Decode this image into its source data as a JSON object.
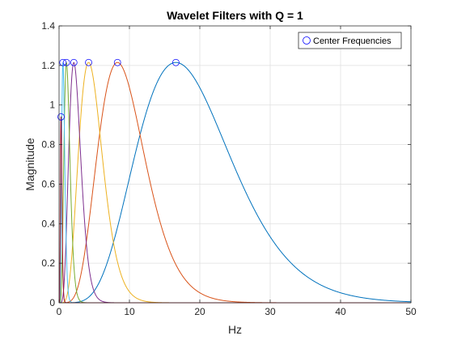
{
  "chart_data": {
    "type": "line",
    "title": "Wavelet Filters with Q = 1",
    "xlabel": "Hz",
    "ylabel": "Magnitude",
    "xlim": [
      0,
      50
    ],
    "ylim": [
      0,
      1.4
    ],
    "xticks": [
      0,
      10,
      20,
      30,
      40,
      50
    ],
    "yticks": [
      0,
      0.2,
      0.4,
      0.6,
      0.8,
      1,
      1.2,
      1.4
    ],
    "xtick_labels": [
      "0",
      "10",
      "20",
      "30",
      "40",
      "50"
    ],
    "ytick_labels": [
      "0",
      "0.2",
      "0.4",
      "0.6",
      "0.8",
      "1",
      "1.2",
      "1.4"
    ],
    "grid": true,
    "legend": {
      "location": "top-right",
      "entries": [
        "Center Frequencies"
      ]
    },
    "series": [
      {
        "center_hz": 16.6,
        "peak": 1.215,
        "color": "#0072BD"
      },
      {
        "center_hz": 8.3,
        "peak": 1.215,
        "color": "#D95319"
      },
      {
        "center_hz": 4.2,
        "peak": 1.215,
        "color": "#EDB120"
      },
      {
        "center_hz": 2.1,
        "peak": 1.215,
        "color": "#7E2F8E"
      },
      {
        "center_hz": 1.05,
        "peak": 1.215,
        "color": "#77AC30"
      },
      {
        "center_hz": 0.55,
        "peak": 1.215,
        "color": "#4DBEEE"
      },
      {
        "center_hz": 0.28,
        "peak": 0.94,
        "color": "#A2142F"
      }
    ],
    "center_frequencies": {
      "x": [
        16.6,
        8.3,
        4.2,
        2.1,
        1.05,
        0.55,
        0.28
      ],
      "y": [
        1.215,
        1.215,
        1.215,
        1.215,
        1.215,
        1.215,
        0.94
      ],
      "marker": "circle",
      "color": "#0000FF"
    }
  }
}
